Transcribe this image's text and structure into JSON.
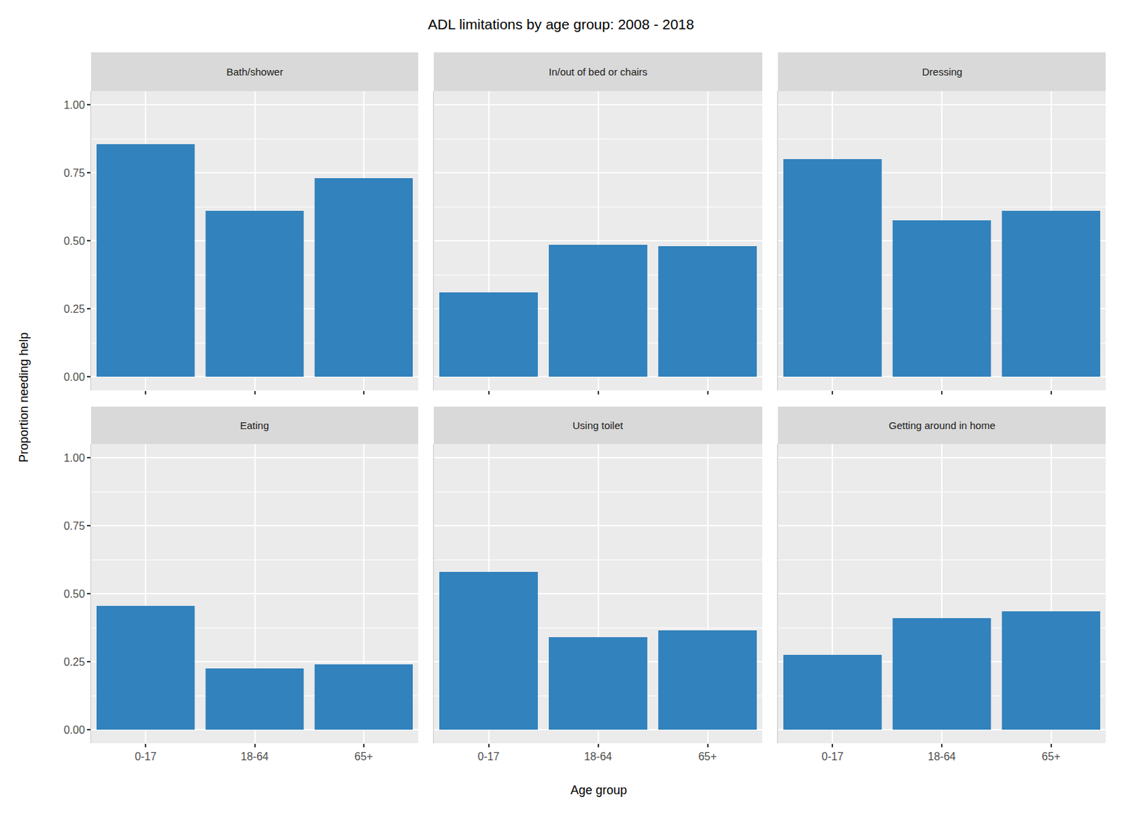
{
  "chart_data": {
    "type": "bar",
    "title": "ADL limitations by age group: 2008 - 2018",
    "x_label": "Age group",
    "y_label": "Proportion needing help",
    "categories": [
      "0-17",
      "18-64",
      "65+"
    ],
    "color": "#3182bd",
    "ylim": [
      -0.05,
      1.05
    ],
    "yticks": [
      {
        "value": 0,
        "label": "0.00"
      },
      {
        "value": 0.25,
        "label": "0.25"
      },
      {
        "value": 0.5,
        "label": "0.50"
      },
      {
        "value": 0.75,
        "label": "0.75"
      },
      {
        "value": 1,
        "label": "1.00"
      }
    ],
    "grid": true,
    "series": [
      {
        "name": "Bath/shower",
        "values": [
          0.855,
          0.61,
          0.73
        ]
      },
      {
        "name": "In/out of bed or chairs",
        "values": [
          0.31,
          0.485,
          0.48
        ]
      },
      {
        "name": "Dressing",
        "values": [
          0.8,
          0.575,
          0.61
        ]
      },
      {
        "name": "Eating",
        "values": [
          0.455,
          0.225,
          0.24
        ]
      },
      {
        "name": "Using toilet",
        "values": [
          0.58,
          0.34,
          0.365
        ]
      },
      {
        "name": "Getting around in home",
        "values": [
          0.275,
          0.41,
          0.435
        ]
      }
    ]
  }
}
